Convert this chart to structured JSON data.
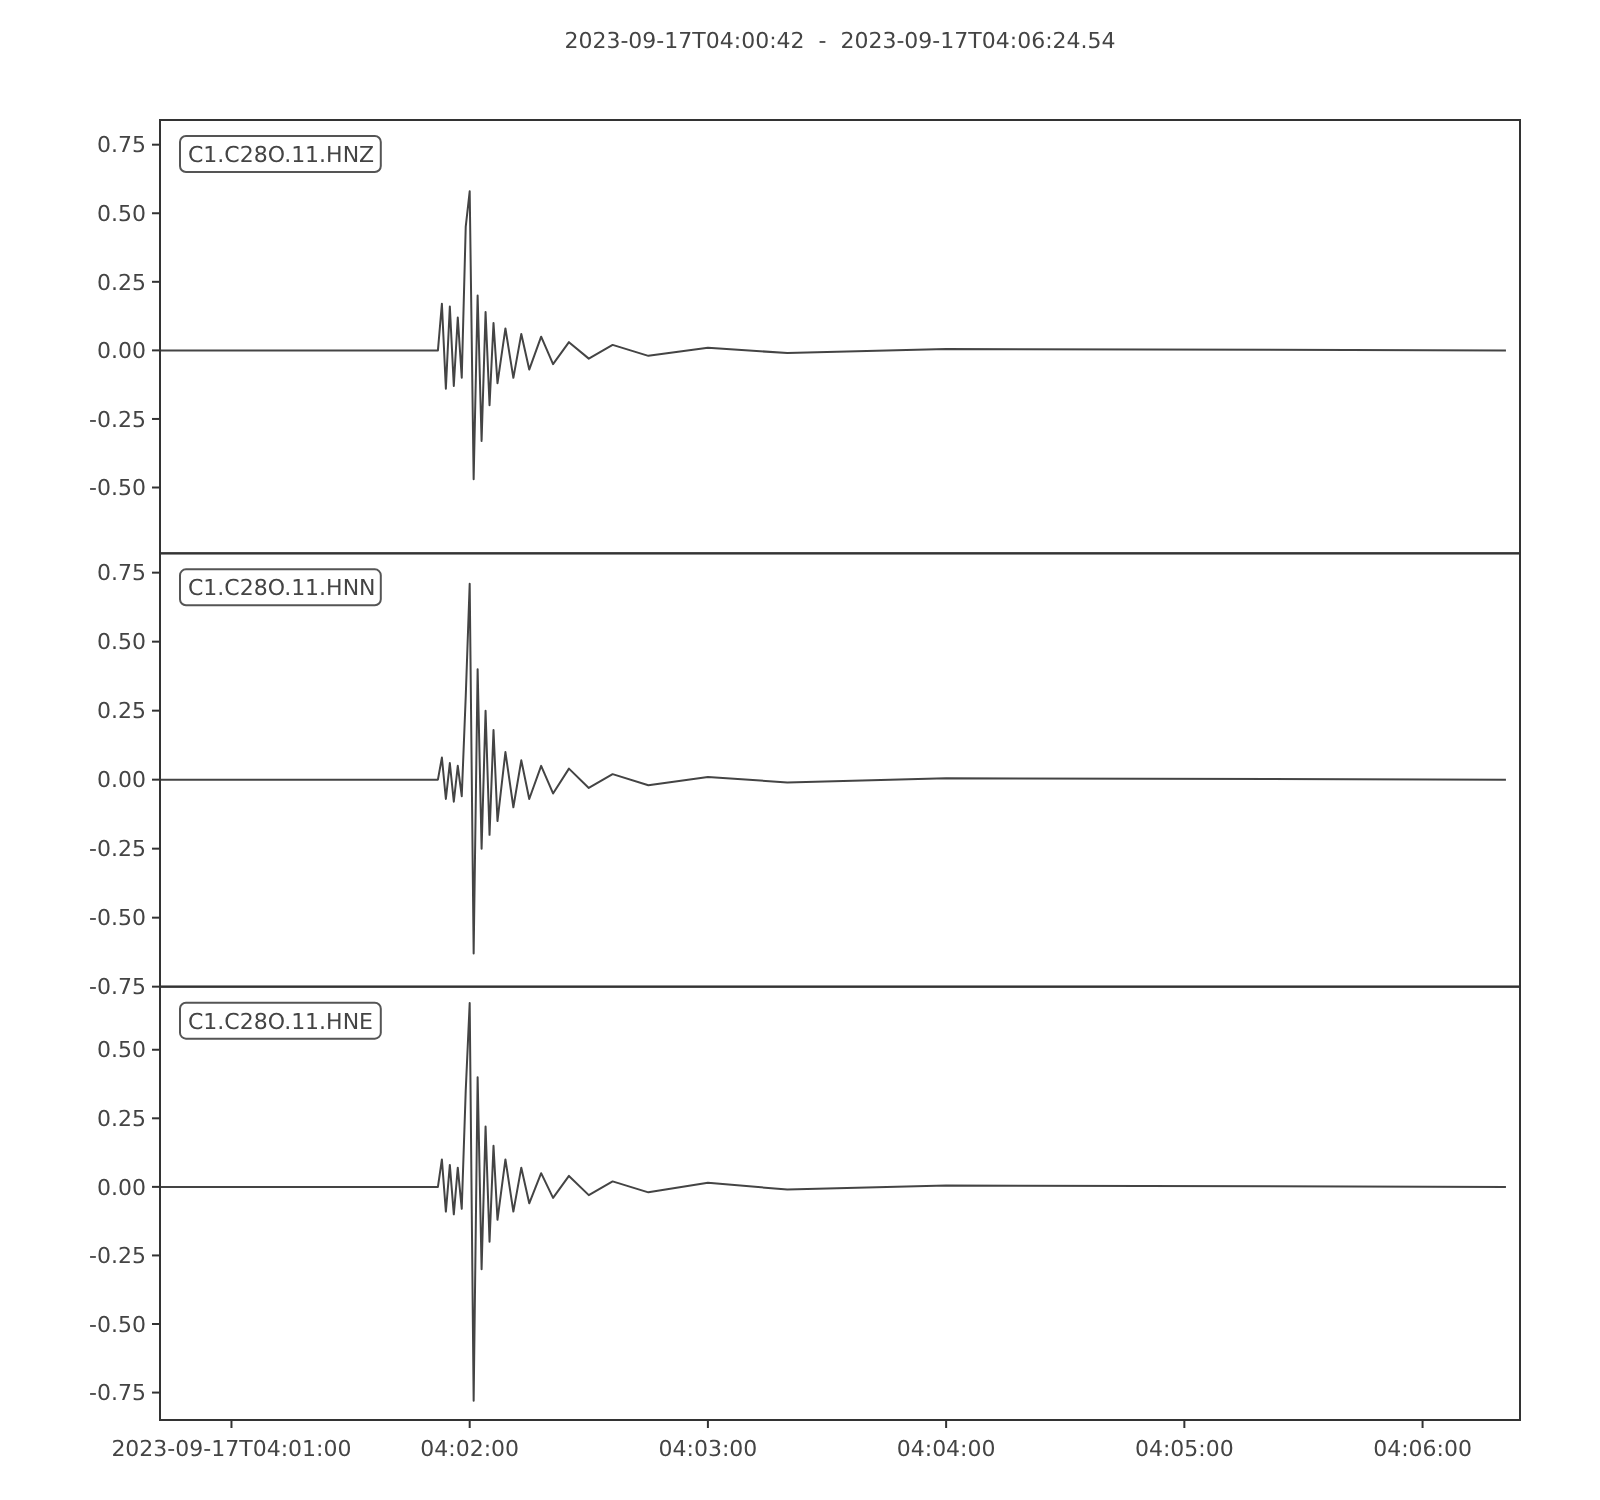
{
  "chart_data": [
    {
      "type": "line",
      "title": "2023-09-17T04:00:42  -  2023-09-17T04:06:24.54",
      "annotations": [
        "C1.C28O.11.HNZ"
      ],
      "tick_labels": "y",
      "x": [
        "2023-09-17T04:00:42",
        "2023-09-17T04:01:52",
        "2023-09-17T04:01:53",
        "2023-09-17T04:01:54",
        "2023-09-17T04:01:55",
        "2023-09-17T04:01:56",
        "2023-09-17T04:01:57",
        "2023-09-17T04:01:58",
        "2023-09-17T04:01:59",
        "2023-09-17T04:02:00",
        "2023-09-17T04:02:01",
        "2023-09-17T04:02:02",
        "2023-09-17T04:02:03",
        "2023-09-17T04:02:04",
        "2023-09-17T04:02:05",
        "2023-09-17T04:02:06",
        "2023-09-17T04:02:07",
        "2023-09-17T04:02:09",
        "2023-09-17T04:02:11",
        "2023-09-17T04:02:13",
        "2023-09-17T04:02:15",
        "2023-09-17T04:02:18",
        "2023-09-17T04:02:21",
        "2023-09-17T04:02:25",
        "2023-09-17T04:02:30",
        "2023-09-17T04:02:36",
        "2023-09-17T04:02:45",
        "2023-09-17T04:03:00",
        "2023-09-17T04:03:20",
        "2023-09-17T04:04:00",
        "2023-09-17T04:06:21"
      ],
      "series": [
        {
          "color": "#444444",
          "values": [
            0,
            0,
            0.17,
            -0.14,
            0.16,
            -0.13,
            0.12,
            -0.1,
            0.45,
            0.58,
            -0.47,
            0.2,
            -0.33,
            0.14,
            -0.2,
            0.1,
            -0.12,
            0.08,
            -0.1,
            0.06,
            -0.07,
            0.05,
            -0.05,
            0.03,
            -0.03,
            0.02,
            -0.02,
            0.01,
            -0.01,
            0.005,
            0
          ]
        }
      ],
      "xlim": [
        "2023-09-17T04:00:42",
        "2023-09-17T04:06:24.54"
      ],
      "ylim": [
        -0.74,
        0.84
      ],
      "yticks": [
        0.75,
        {
          "value": 0.5,
          "label": "0.50"
        },
        0.25,
        {
          "value": 0,
          "label": "0.00"
        },
        -0.25,
        {
          "value": -0.5,
          "label": "-0.50"
        }
      ]
    },
    {
      "type": "line",
      "annotations": [
        "C1.C28O.11.HNN"
      ],
      "tick_labels": "y",
      "x": [
        "2023-09-17T04:00:42",
        "2023-09-17T04:01:52",
        "2023-09-17T04:01:53",
        "2023-09-17T04:01:54",
        "2023-09-17T04:01:55",
        "2023-09-17T04:01:56",
        "2023-09-17T04:01:57",
        "2023-09-17T04:01:58",
        "2023-09-17T04:01:59",
        "2023-09-17T04:02:00",
        "2023-09-17T04:02:01",
        "2023-09-17T04:02:02",
        "2023-09-17T04:02:03",
        "2023-09-17T04:02:04",
        "2023-09-17T04:02:05",
        "2023-09-17T04:02:06",
        "2023-09-17T04:02:07",
        "2023-09-17T04:02:09",
        "2023-09-17T04:02:11",
        "2023-09-17T04:02:13",
        "2023-09-17T04:02:15",
        "2023-09-17T04:02:18",
        "2023-09-17T04:02:21",
        "2023-09-17T04:02:25",
        "2023-09-17T04:02:30",
        "2023-09-17T04:02:36",
        "2023-09-17T04:02:45",
        "2023-09-17T04:03:00",
        "2023-09-17T04:03:20",
        "2023-09-17T04:04:00",
        "2023-09-17T04:06:21"
      ],
      "series": [
        {
          "color": "#444444",
          "values": [
            0,
            0,
            0.08,
            -0.07,
            0.06,
            -0.08,
            0.05,
            -0.06,
            0.3,
            0.71,
            -0.63,
            0.4,
            -0.25,
            0.25,
            -0.2,
            0.18,
            -0.15,
            0.1,
            -0.1,
            0.07,
            -0.07,
            0.05,
            -0.05,
            0.04,
            -0.03,
            0.02,
            -0.02,
            0.01,
            -0.01,
            0.005,
            0
          ]
        }
      ],
      "xlim": [
        "2023-09-17T04:00:42",
        "2023-09-17T04:06:24.54"
      ],
      "ylim": [
        -0.75,
        0.82
      ],
      "yticks": [
        0.75,
        {
          "value": 0.5,
          "label": "0.50"
        },
        0.25,
        {
          "value": 0,
          "label": "0.00"
        },
        -0.25,
        {
          "value": -0.5,
          "label": "-0.50"
        },
        -0.75
      ]
    },
    {
      "type": "line",
      "annotations": [
        "C1.C28O.11.HNE"
      ],
      "x": [
        "2023-09-17T04:00:42",
        "2023-09-17T04:01:52",
        "2023-09-17T04:01:53",
        "2023-09-17T04:01:54",
        "2023-09-17T04:01:55",
        "2023-09-17T04:01:56",
        "2023-09-17T04:01:57",
        "2023-09-17T04:01:58",
        "2023-09-17T04:01:59",
        "2023-09-17T04:02:00",
        "2023-09-17T04:02:01",
        "2023-09-17T04:02:02",
        "2023-09-17T04:02:03",
        "2023-09-17T04:02:04",
        "2023-09-17T04:02:05",
        "2023-09-17T04:02:06",
        "2023-09-17T04:02:07",
        "2023-09-17T04:02:09",
        "2023-09-17T04:02:11",
        "2023-09-17T04:02:13",
        "2023-09-17T04:02:15",
        "2023-09-17T04:02:18",
        "2023-09-17T04:02:21",
        "2023-09-17T04:02:25",
        "2023-09-17T04:02:30",
        "2023-09-17T04:02:36",
        "2023-09-17T04:02:45",
        "2023-09-17T04:03:00",
        "2023-09-17T04:03:20",
        "2023-09-17T04:04:00",
        "2023-09-17T04:06:21"
      ],
      "series": [
        {
          "color": "#444444",
          "values": [
            0,
            0,
            0.1,
            -0.09,
            0.08,
            -0.1,
            0.07,
            -0.08,
            0.35,
            0.67,
            -0.78,
            0.4,
            -0.3,
            0.22,
            -0.2,
            0.15,
            -0.12,
            0.1,
            -0.09,
            0.07,
            -0.06,
            0.05,
            -0.04,
            0.04,
            -0.03,
            0.02,
            -0.02,
            0.015,
            -0.01,
            0.005,
            0
          ]
        }
      ],
      "xlim": [
        "2023-09-17T04:00:42",
        "2023-09-17T04:06:24.54"
      ],
      "xticks": [
        "2023-09-17T04:01:00",
        {
          "value": "2023-09-17T04:02:00",
          "label": "04:02:00"
        },
        {
          "value": "2023-09-17T04:03:00",
          "label": "04:03:00"
        },
        {
          "value": "2023-09-17T04:04:00",
          "label": "04:04:00"
        },
        {
          "value": "2023-09-17T04:05:00",
          "label": "04:05:00"
        },
        {
          "value": "2023-09-17T04:06:00",
          "label": "04:06:00"
        }
      ],
      "ylim": [
        -0.85,
        0.73
      ],
      "yticks": [
        {
          "value": 0.5,
          "label": "0.50"
        },
        0.25,
        {
          "value": 0,
          "label": "0.00"
        },
        -0.25,
        {
          "value": -0.5,
          "label": "-0.50"
        },
        -0.75
      ]
    }
  ]
}
